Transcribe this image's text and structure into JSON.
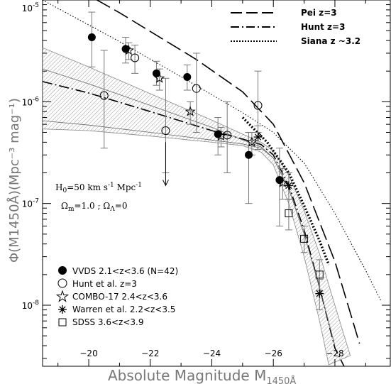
{
  "chart_data": {
    "type": "scatter",
    "xlabel": "Absolute Magnitude M",
    "xlabel_sub": "1450Å",
    "ylabel": "Φ(M1450Å)(Mpc⁻³ mag⁻¹)",
    "xlim": [
      -18.5,
      -29.8
    ],
    "ylim_log10": [
      -8.6,
      -5
    ],
    "x_ticks": [
      -20,
      -22,
      -24,
      -26,
      -28
    ],
    "y_ticks": [
      {
        "log": -5,
        "base": "10",
        "exp": "-5"
      },
      {
        "log": -6,
        "base": "10",
        "exp": "-6"
      },
      {
        "log": -7,
        "base": "10",
        "exp": "-7"
      },
      {
        "log": -8,
        "base": "10",
        "exp": "-8"
      }
    ],
    "annotations": {
      "h0": "H",
      "h0_sub": "0",
      "h0_rest": "=50 km s",
      "h0_sup": "-1",
      "h0_tail": " Mpc",
      "h0_tail_sup": "-1",
      "omega_m": "Ω",
      "omega_m_sub": "m",
      "omega_m_rest": "=1.0 ; Ω",
      "omega_l_sub": "Λ",
      "omega_l_rest": "=0"
    },
    "line_legend": [
      {
        "label": "Pei z=3",
        "style": "dashed"
      },
      {
        "label": "Hunt z=3",
        "style": "dashdot"
      },
      {
        "label": "Siana z ~3.2",
        "style": "dotted"
      }
    ],
    "point_legend": [
      {
        "label": "VVDS 2.1<z<3.6 (N=42)",
        "marker": "filled-circle"
      },
      {
        "label": "Hunt et al. z=3",
        "marker": "open-circle"
      },
      {
        "label": "COMBO-17 2.4<z<3.6",
        "marker": "star"
      },
      {
        "label": "Warren et al. 2.2<z<3.5",
        "marker": "asterisk"
      },
      {
        "label": "SDSS 3.6<z<3.9",
        "marker": "open-square"
      }
    ],
    "series": [
      {
        "name": "VVDS 2.1<z<3.6 (N=42)",
        "marker": "filled-circle",
        "points": [
          {
            "x": -20.1,
            "y": 4.3e-06,
            "ylo": 2.2e-06,
            "yhi": 7.6e-06
          },
          {
            "x": -21.2,
            "y": 3.3e-06,
            "ylo": 2.4e-06,
            "yhi": 4.3e-06
          },
          {
            "x": -22.2,
            "y": 1.9e-06,
            "ylo": 1.45e-06,
            "yhi": 2.5e-06
          },
          {
            "x": -23.2,
            "y": 1.75e-06,
            "ylo": 1.3e-06,
            "yhi": 2.3e-06
          },
          {
            "x": -24.2,
            "y": 4.8e-07,
            "ylo": 3e-07,
            "yhi": 7e-07
          },
          {
            "x": -25.2,
            "y": 3e-07,
            "ylo": 1e-07,
            "yhi": 5e-07
          },
          {
            "x": -26.2,
            "y": 1.7e-07,
            "ylo": 6e-08,
            "yhi": 3.5e-07
          }
        ]
      },
      {
        "name": "Hunt et al. z=3",
        "marker": "open-circle",
        "points": [
          {
            "x": -20.5,
            "y": 1.15e-06,
            "ylo": 3.5e-07,
            "yhi": 3.2e-06
          },
          {
            "x": -21.5,
            "y": 2.7e-06,
            "ylo": 1.9e-06,
            "yhi": 3.6e-06
          },
          {
            "x": -22.5,
            "y": 5.2e-07,
            "ylo": 2e-07,
            "yhi": 1.7e-06
          },
          {
            "x": -23.5,
            "y": 1.35e-06,
            "ylo": 5e-07,
            "yhi": 3e-06
          },
          {
            "x": -24.5,
            "y": 4.7e-07,
            "ylo": 2e-07,
            "yhi": 1e-06
          },
          {
            "x": -25.5,
            "y": 9.2e-07,
            "ylo": 5e-07,
            "yhi": 2e-06
          }
        ]
      },
      {
        "name": "COMBO-17 2.4<z<3.6",
        "marker": "star",
        "points": [
          {
            "x": -21.3,
            "y": 3.2e-06,
            "ylo": 2.6e-06,
            "yhi": 3.8e-06
          },
          {
            "x": -22.3,
            "y": 1.7e-06,
            "ylo": 1.3e-06,
            "yhi": 2.1e-06
          },
          {
            "x": -23.3,
            "y": 8e-07,
            "ylo": 6e-07,
            "yhi": 1e-06
          },
          {
            "x": -24.3,
            "y": 4.6e-07,
            "ylo": 3.6e-07,
            "yhi": 5.6e-07
          },
          {
            "x": -25.3,
            "y": 4e-07,
            "ylo": 3e-07,
            "yhi": 5e-07
          },
          {
            "x": -26.3,
            "y": 1.6e-07,
            "ylo": 1.1e-07,
            "yhi": 2.2e-07
          }
        ]
      },
      {
        "name": "Warren et al. 2.2<z<3.5",
        "marker": "asterisk",
        "points": [
          {
            "x": -25.5,
            "y": 4.5e-07,
            "ylo": 3.4e-07,
            "yhi": 5.8e-07
          },
          {
            "x": -26.5,
            "y": 1.5e-07,
            "ylo": 1.1e-07,
            "yhi": 2e-07
          },
          {
            "x": -27.5,
            "y": 1.3e-08,
            "ylo": 9e-09,
            "yhi": 1.8e-08
          }
        ]
      },
      {
        "name": "SDSS 3.6<z<3.9",
        "marker": "open-square",
        "points": [
          {
            "x": -26.5,
            "y": 8e-08,
            "ylo": 5.5e-08,
            "yhi": 1.1e-07
          },
          {
            "x": -27.0,
            "y": 4.5e-08,
            "ylo": 3.3e-08,
            "yhi": 6e-08
          },
          {
            "x": -27.5,
            "y": 2e-08,
            "ylo": 1.4e-08,
            "yhi": 2.8e-08
          }
        ]
      }
    ],
    "upper_limit_arrow": {
      "x": -22.5,
      "y_from": 4e-07,
      "y_to": 1.5e-07
    },
    "curves": [
      {
        "name": "Pei z=3",
        "style": "dashed",
        "points": [
          [
            -18.5,
            2e-05
          ],
          [
            -21.0,
            7.5e-06
          ],
          [
            -23.5,
            2.6e-06
          ],
          [
            -25.0,
            1.25e-06
          ],
          [
            -26.0,
            6e-07
          ],
          [
            -27.0,
            1.6e-07
          ],
          [
            -28.0,
            2.7e-08
          ],
          [
            -28.8,
            4.2e-09
          ]
        ]
      },
      {
        "name": "Hunt z=3",
        "style": "dashdot",
        "points": [
          [
            -18.5,
            1.58e-06
          ],
          [
            -20.0,
            1.22e-06
          ],
          [
            -22.0,
            8e-07
          ],
          [
            -24.0,
            5.2e-07
          ],
          [
            -25.0,
            4.3e-07
          ],
          [
            -25.6,
            3.8e-07
          ],
          [
            -26.0,
            3e-07
          ],
          [
            -26.5,
            1.5e-07
          ],
          [
            -27.0,
            5.5e-08
          ],
          [
            -27.5,
            1.5e-08
          ],
          [
            -28.0,
            3.8e-09
          ],
          [
            -28.3,
            2.5e-09
          ]
        ]
      },
      {
        "name": "Siana z ~3.2",
        "style": "dotted",
        "points": [
          [
            -18.5,
            1e-05
          ],
          [
            -21.0,
            3.9e-06
          ],
          [
            -23.0,
            1.76e-06
          ],
          [
            -25.0,
            7.8e-07
          ],
          [
            -26.0,
            5e-07
          ],
          [
            -27.0,
            2.5e-07
          ],
          [
            -28.0,
            8e-08
          ],
          [
            -29.0,
            2.2e-08
          ],
          [
            -29.5,
            1.1e-08
          ]
        ]
      },
      {
        "name": "dotted-fit",
        "style": "thick-dotted",
        "points": [
          [
            -25.0,
            7e-07
          ],
          [
            -25.8,
            4e-07
          ],
          [
            -26.5,
            2e-07
          ],
          [
            -27.0,
            9.5e-08
          ],
          [
            -27.5,
            4.3e-08
          ],
          [
            -27.8,
            2.5e-08
          ]
        ]
      },
      {
        "name": "fit-main",
        "style": "solid",
        "points": [
          [
            -18.5,
            6.5e-07
          ],
          [
            -20.0,
            5.9e-07
          ],
          [
            -22.0,
            5e-07
          ],
          [
            -24.0,
            4.2e-07
          ],
          [
            -25.0,
            3.85e-07
          ],
          [
            -25.6,
            3.5e-07
          ],
          [
            -26.0,
            2.8e-07
          ],
          [
            -26.5,
            1.4e-07
          ],
          [
            -27.0,
            5e-08
          ],
          [
            -27.5,
            1.5e-08
          ],
          [
            -28.0,
            4e-09
          ]
        ]
      },
      {
        "name": "fit-steep",
        "style": "solid",
        "points": [
          [
            -18.5,
            2.1e-06
          ],
          [
            -20.0,
            1.5e-06
          ],
          [
            -22.0,
            9.2e-07
          ],
          [
            -24.0,
            5.6e-07
          ],
          [
            -25.0,
            4.2e-07
          ],
          [
            -25.6,
            3.6e-07
          ],
          [
            -26.0,
            2.8e-07
          ],
          [
            -26.5,
            1.4e-07
          ],
          [
            -27.0,
            5e-08
          ],
          [
            -27.5,
            1.5e-08
          ],
          [
            -28.0,
            4e-09
          ]
        ]
      }
    ],
    "band": {
      "upper": [
        [
          -18.5,
          3.4e-06
        ],
        [
          -20.0,
          2.2e-06
        ],
        [
          -22.0,
          1.2e-06
        ],
        [
          -24.0,
          6.6e-07
        ],
        [
          -25.0,
          4.8e-07
        ],
        [
          -25.6,
          4e-07
        ],
        [
          -26.0,
          3.3e-07
        ],
        [
          -26.5,
          1.9e-07
        ],
        [
          -27.0,
          8.5e-08
        ],
        [
          -27.5,
          3.2e-08
        ],
        [
          -28.0,
          1e-08
        ],
        [
          -28.5,
          3.2e-09
        ]
      ],
      "lower": [
        [
          -18.5,
          5.4e-07
        ],
        [
          -20.0,
          5.2e-07
        ],
        [
          -22.0,
          4.6e-07
        ],
        [
          -24.0,
          4e-07
        ],
        [
          -25.0,
          3.7e-07
        ],
        [
          -25.6,
          3.2e-07
        ],
        [
          -26.0,
          2.4e-07
        ],
        [
          -26.5,
          1e-07
        ],
        [
          -27.0,
          3e-08
        ],
        [
          -27.5,
          7e-09
        ],
        [
          -27.8,
          2.6e-09
        ]
      ]
    }
  }
}
